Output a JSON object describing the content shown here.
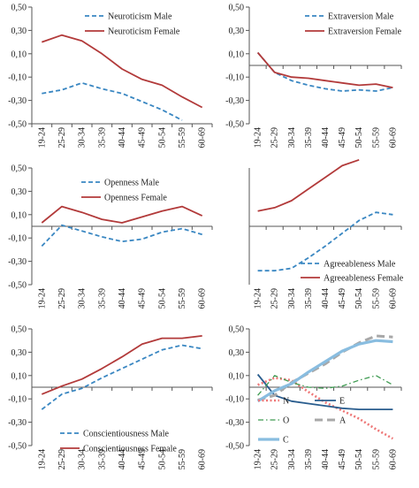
{
  "colors": {
    "male": "#3a87c2",
    "female": "#b23a3a",
    "N": "#ee7777",
    "E": "#2a5d8e",
    "O": "#3d9a50",
    "A": "#a8a8a8",
    "C": "#89bde0",
    "axis": "#555555"
  },
  "chart_data": [
    {
      "type": "line",
      "categories": [
        "19-24",
        "25-29",
        "30-34",
        "35-39",
        "40-44",
        "45-49",
        "50-54",
        "55-59",
        "60-69"
      ],
      "ylim": [
        -0.5,
        0.5
      ],
      "yticks": [
        "-0,50",
        "-0,30",
        "-0,10",
        "0,10",
        "0,30",
        "0,50"
      ],
      "ytick_values": [
        -0.5,
        -0.3,
        -0.1,
        0.1,
        0.3,
        0.5
      ],
      "legend_position": "top-right",
      "series": [
        {
          "name": "Neuroticism Male",
          "style": "dashed",
          "color_key": "male",
          "values": [
            -0.24,
            -0.21,
            -0.15,
            -0.2,
            -0.24,
            -0.31,
            -0.38,
            -0.47,
            null
          ]
        },
        {
          "name": "Neuroticism Female",
          "style": "solid",
          "color_key": "female",
          "values": [
            0.2,
            0.26,
            0.21,
            0.1,
            -0.03,
            -0.12,
            -0.17,
            -0.27,
            -0.36
          ]
        }
      ]
    },
    {
      "type": "line",
      "categories": [
        "19-24",
        "25-29",
        "30-34",
        "35-39",
        "40-44",
        "45-49",
        "50-54",
        "55-59",
        "60-69"
      ],
      "ylim": [
        -0.5,
        0.5
      ],
      "yticks": [
        "-0,50",
        "-0,30",
        "-0,10",
        "0,10",
        "0,30",
        "0,50"
      ],
      "ytick_values": [
        -0.5,
        -0.3,
        -0.1,
        0.1,
        0.3,
        0.5
      ],
      "baseline": 0,
      "legend_position": "top-right",
      "series": [
        {
          "name": "Extraversion Male",
          "style": "dashed",
          "color_key": "male",
          "values": [
            0.11,
            -0.06,
            -0.13,
            -0.17,
            -0.2,
            -0.22,
            -0.21,
            -0.22,
            -0.19
          ]
        },
        {
          "name": "Extraversion Female",
          "style": "solid",
          "color_key": "female",
          "values": [
            0.11,
            -0.06,
            -0.1,
            -0.11,
            -0.13,
            -0.15,
            -0.17,
            -0.16,
            -0.19
          ]
        }
      ]
    },
    {
      "type": "line",
      "categories": [
        "19-24",
        "25-29",
        "30-34",
        "35-39",
        "40-44",
        "45-49",
        "50-54",
        "55-59",
        "60-69"
      ],
      "ylim": [
        -0.5,
        0.5
      ],
      "yticks": [
        "-0,50",
        "-0,30",
        "-0,10",
        "0,10",
        "0,30",
        "0,50"
      ],
      "ytick_values": [
        -0.5,
        -0.3,
        -0.1,
        0.1,
        0.3,
        0.5
      ],
      "baseline": 0,
      "legend_position": "top-right",
      "series": [
        {
          "name": "Openness Male",
          "style": "dashed",
          "color_key": "male",
          "values": [
            -0.17,
            0.01,
            -0.04,
            -0.09,
            -0.13,
            -0.11,
            -0.05,
            -0.02,
            -0.07
          ]
        },
        {
          "name": "Openness Female",
          "style": "solid",
          "color_key": "female",
          "values": [
            0.03,
            0.17,
            0.12,
            0.06,
            0.03,
            0.08,
            0.13,
            0.17,
            0.09
          ]
        }
      ]
    },
    {
      "type": "line",
      "categories": [
        "19-24",
        "25-29",
        "30-34",
        "35-39",
        "40-44",
        "45-49",
        "50-54",
        "55-59",
        "60-69"
      ],
      "ylim": [
        -0.5,
        0.5
      ],
      "yticks": [],
      "ytick_values": [],
      "baseline": 0,
      "legend_position": "bottom-right",
      "series": [
        {
          "name": "Agreeableness Male",
          "style": "dashed",
          "color_key": "male",
          "values": [
            -0.38,
            -0.38,
            -0.36,
            -0.27,
            -0.17,
            -0.06,
            0.05,
            0.12,
            0.1
          ]
        },
        {
          "name": "Agreeableness Female",
          "style": "solid",
          "color_key": "female",
          "values": [
            0.13,
            0.16,
            0.22,
            0.32,
            0.42,
            0.52,
            0.57,
            null,
            null
          ]
        }
      ]
    },
    {
      "type": "line",
      "categories": [
        "19-24",
        "25-29",
        "30-34",
        "35-39",
        "40-44",
        "45-49",
        "50-54",
        "55-59",
        "60-69"
      ],
      "ylim": [
        -0.5,
        0.5
      ],
      "yticks": [
        "-0,50",
        "-0,30",
        "-0,10",
        "0,10",
        "0,30",
        "0,50"
      ],
      "ytick_values": [
        -0.5,
        -0.3,
        -0.1,
        0.1,
        0.3,
        0.5
      ],
      "baseline": 0,
      "legend_position": "bottom-right",
      "series": [
        {
          "name": "Conscientiousness Male",
          "style": "dashed",
          "color_key": "male",
          "values": [
            -0.19,
            -0.06,
            -0.01,
            0.08,
            0.16,
            0.24,
            0.32,
            0.36,
            0.33
          ]
        },
        {
          "name": "Conscientiousness Female",
          "style": "solid",
          "color_key": "female",
          "values": [
            -0.06,
            0.01,
            0.07,
            0.16,
            0.26,
            0.37,
            0.42,
            0.42,
            0.44
          ]
        }
      ]
    },
    {
      "type": "line",
      "categories": [
        "19-24",
        "25-29",
        "30-34",
        "35-39",
        "40-44",
        "45-49",
        "50-54",
        "55-59",
        "60-69"
      ],
      "ylim": [
        -0.5,
        0.5
      ],
      "yticks": [
        "-0,50",
        "-0,30",
        "-0,10",
        "0,10",
        "0,30",
        "0,50"
      ],
      "ytick_values": [
        -0.5,
        -0.3,
        -0.1,
        0.1,
        0.3,
        0.5
      ],
      "baseline": 0,
      "legend_position": "bottom-left",
      "series": [
        {
          "name": "N",
          "style": "dotted",
          "color_key": "N",
          "values": [
            0.02,
            0.08,
            0.06,
            -0.04,
            -0.13,
            -0.2,
            -0.27,
            -0.36,
            -0.44
          ]
        },
        {
          "name": "E",
          "style": "solid",
          "color_key": "E",
          "values": [
            0.11,
            -0.07,
            -0.12,
            -0.14,
            -0.16,
            -0.18,
            -0.19,
            -0.19,
            -0.19
          ]
        },
        {
          "name": "O",
          "style": "dashdot",
          "color_key": "O",
          "values": [
            -0.07,
            0.1,
            0.04,
            0.0,
            -0.01,
            0.01,
            0.06,
            0.1,
            0.02
          ]
        },
        {
          "name": "A",
          "style": "longdash",
          "color_key": "A",
          "values": [
            -0.11,
            -0.07,
            0.04,
            0.12,
            0.2,
            0.3,
            0.38,
            0.44,
            0.43
          ]
        },
        {
          "name": "C",
          "style": "thick",
          "color_key": "C",
          "values": [
            -0.12,
            -0.03,
            0.03,
            0.13,
            0.22,
            0.31,
            0.37,
            0.4,
            0.39
          ]
        }
      ]
    }
  ]
}
